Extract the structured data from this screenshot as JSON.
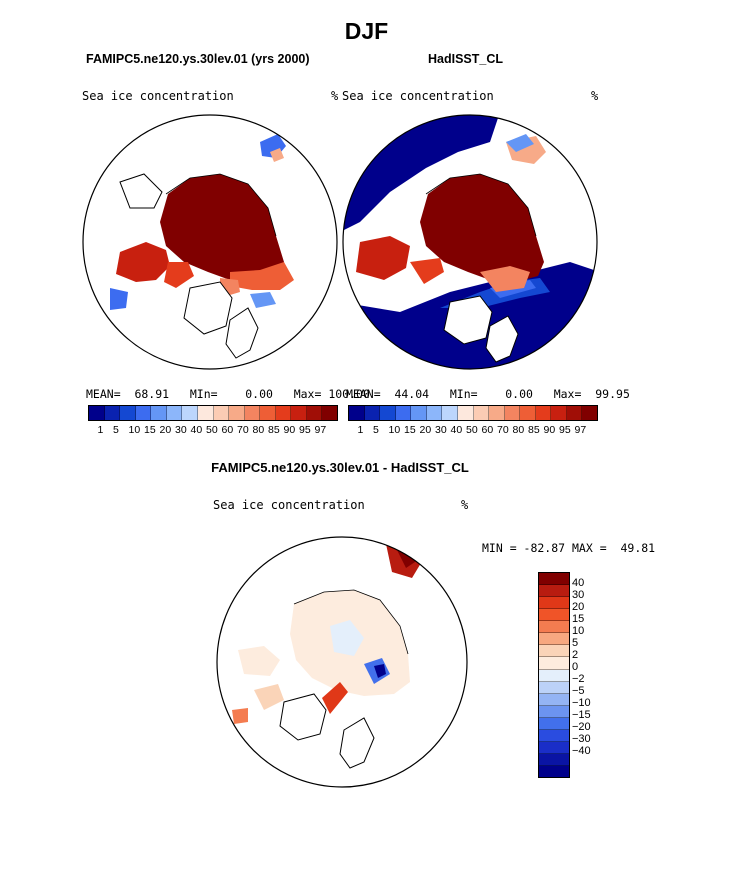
{
  "main_title": "DJF",
  "panels": {
    "left": {
      "case_title": "FAMIPC5.ne120.ys.30lev.01 (yrs 2000)",
      "var_label": "Sea ice concentration",
      "unit": "%",
      "stats": "MEAN=  68.91   MIn=    0.00   Max= 100.00"
    },
    "right": {
      "case_title": "HadISST_CL",
      "var_label": "Sea ice concentration",
      "unit": "%",
      "stats": "MEAN=  44.04   MIn=    0.00   Max=  99.95"
    },
    "diff": {
      "case_title": "FAMIPC5.ne120.ys.30lev.01 - HadISST_CL",
      "var_label": "Sea ice concentration",
      "unit": "%",
      "minmax": "MIN = -82.87 MAX =  49.81"
    }
  },
  "colorbars": {
    "abs": {
      "colors": [
        "#00008b",
        "#0a22b0",
        "#1448d2",
        "#3c6cf0",
        "#6496f5",
        "#8cb6fa",
        "#bcd6fd",
        "#fde8dd",
        "#fbccb4",
        "#f7aa88",
        "#f38460",
        "#ee5e36",
        "#e43c1c",
        "#c82010",
        "#a00e06",
        "#800000"
      ],
      "labels": [
        "1",
        "5",
        "10",
        "15",
        "20",
        "30",
        "40",
        "50",
        "60",
        "70",
        "80",
        "85",
        "90",
        "95",
        "97"
      ]
    },
    "diff": {
      "colors": [
        "#800000",
        "#b81c10",
        "#e03818",
        "#f05428",
        "#f47c50",
        "#f7a880",
        "#fad4b8",
        "#fdecde",
        "#e4effb",
        "#bcd2f8",
        "#94b4f4",
        "#6c94f0",
        "#4270ec",
        "#2a4ce0",
        "#1a2ec8",
        "#0a14a4",
        "#00008b"
      ],
      "labels": [
        "40",
        "30",
        "20",
        "15",
        "10",
        "5",
        "2",
        "0",
        "−2",
        "−5",
        "−10",
        "−15",
        "−20",
        "−30",
        "−40"
      ]
    }
  }
}
